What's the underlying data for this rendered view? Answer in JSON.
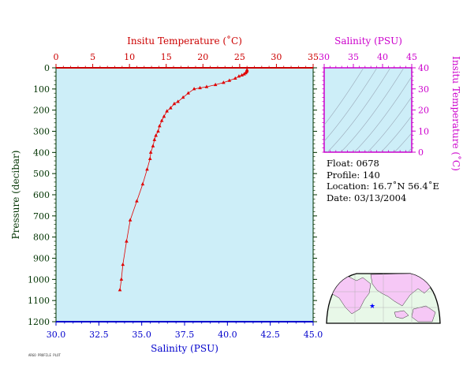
{
  "chart_data": [
    {
      "type": "scatter",
      "name_hint": "main-profile",
      "top_axis_label": "Insitu Temperature (˚C)",
      "bottom_axis_label": "Salinity (PSU)",
      "left_axis_label": "Pressure (decibar)",
      "top_ticks": [
        "0",
        "5",
        "10",
        "15",
        "20",
        "25",
        "30",
        "35"
      ],
      "bottom_ticks": [
        "30.0",
        "32.5",
        "35.0",
        "37.5",
        "40.0",
        "42.5",
        "45.0"
      ],
      "left_ticks": [
        "0",
        "100",
        "200",
        "300",
        "400",
        "500",
        "600",
        "700",
        "800",
        "900",
        "1000",
        "1100",
        "1200"
      ],
      "xlim_temperature": [
        0,
        35
      ],
      "xlim_salinity": [
        30,
        45
      ],
      "ylim_pressure": [
        0,
        1200
      ],
      "y_inverted": true,
      "series": [
        {
          "color": "#e00000",
          "x_temperature": [
            26.0,
            26.0,
            25.9,
            25.8,
            25.6,
            25.3,
            24.9,
            24.4,
            23.6,
            22.8,
            21.7,
            20.5,
            19.6,
            18.8,
            18.0,
            17.3,
            16.6,
            16.1,
            15.6,
            15.1,
            14.7,
            14.4,
            14.1,
            13.9,
            13.6,
            13.4,
            13.2,
            12.9,
            12.8,
            12.4,
            11.8,
            11.0,
            10.1,
            9.6,
            9.1,
            8.9,
            8.7
          ],
          "y_pressure": [
            10,
            15,
            20,
            25,
            30,
            35,
            40,
            50,
            60,
            70,
            80,
            90,
            95,
            100,
            120,
            140,
            160,
            170,
            190,
            205,
            230,
            250,
            275,
            300,
            320,
            340,
            370,
            400,
            430,
            480,
            550,
            630,
            720,
            820,
            930,
            1000,
            1050
          ]
        }
      ]
    },
    {
      "type": "line",
      "name_hint": "ts-diagram",
      "top_axis_label": "Salinity (PSU)",
      "right_axis_label": "Insitu Temperature (˚C)",
      "top_ticks": [
        "30",
        "35",
        "40",
        "45"
      ],
      "right_ticks": [
        "0",
        "10",
        "20",
        "30",
        "40"
      ],
      "xlim": [
        30,
        45
      ],
      "ylim": [
        0,
        40
      ],
      "grid": "density contours"
    }
  ],
  "info": {
    "float": "Float:  0678",
    "profile": "Profile:  140",
    "location": "Location:  16.7˚N  56.4˚E",
    "date": "Date:  03/13/2004"
  },
  "colors": {
    "plot_bg": "#cdeef8",
    "temperature_axis": "#cc0000",
    "salinity_axis": "#0000cc",
    "pressure_axis": "#003300",
    "ts_axis": "#cc00cc",
    "data": "#e00000",
    "map_land": "#f6c8f6",
    "map_sea": "#e8f8e8",
    "float_marker": "#0000ff"
  },
  "footer": "ARGO PROFILE PLOT"
}
